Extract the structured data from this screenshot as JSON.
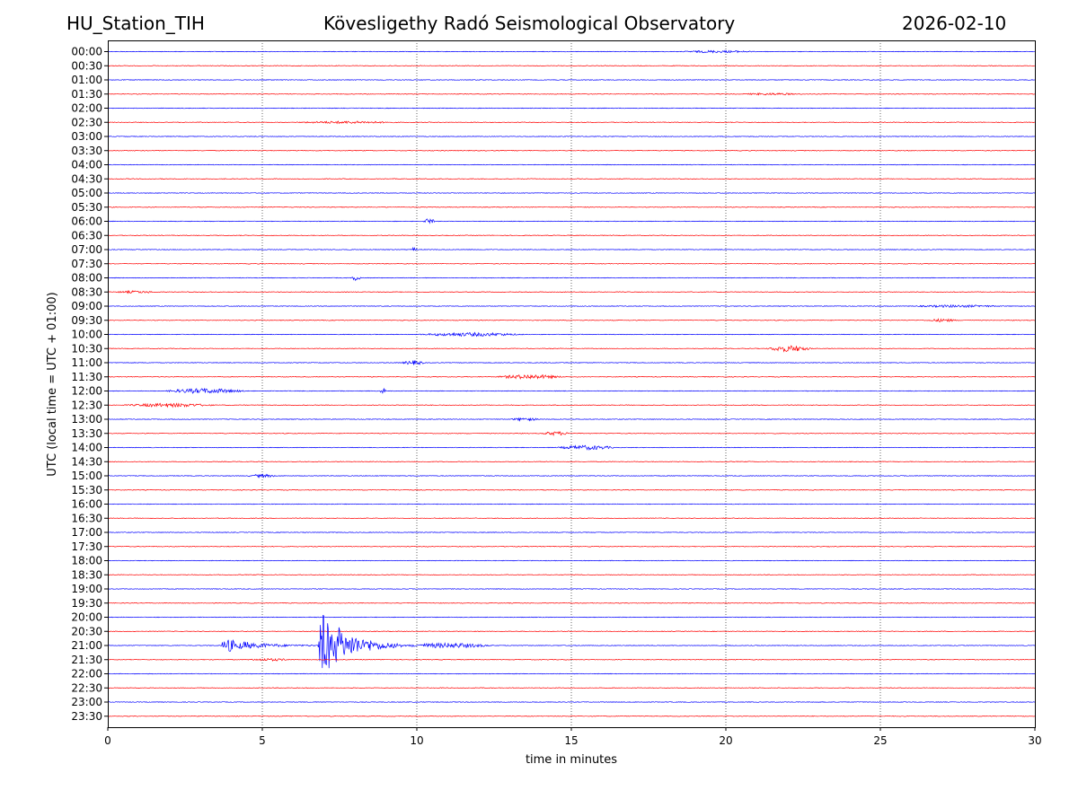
{
  "header": {
    "station": "HU_Station_TIH",
    "observatory": "Kövesligethy Radó Seismological Observatory",
    "date": "2026-02-10"
  },
  "chart_data": {
    "type": "line",
    "title": "Kövesligethy Radó Seismological Observatory",
    "xlabel": "time in minutes",
    "ylabel": "UTC (local time = UTC + 01:00)",
    "xlim": [
      0,
      30
    ],
    "x_ticks": [
      "0",
      "5",
      "10",
      "15",
      "20",
      "25",
      "30"
    ],
    "grid": "vertical dotted lines at 5-minute intervals",
    "row_labels": [
      "00:00",
      "00:30",
      "01:00",
      "01:30",
      "02:00",
      "02:30",
      "03:00",
      "03:30",
      "04:00",
      "04:30",
      "05:00",
      "05:30",
      "06:00",
      "06:30",
      "07:00",
      "07:30",
      "08:00",
      "08:30",
      "09:00",
      "09:30",
      "10:00",
      "10:30",
      "11:00",
      "11:30",
      "12:00",
      "12:30",
      "13:00",
      "13:30",
      "14:00",
      "14:30",
      "15:00",
      "15:30",
      "16:00",
      "16:30",
      "17:00",
      "17:30",
      "18:00",
      "18:30",
      "19:00",
      "19:30",
      "20:00",
      "20:30",
      "21:00",
      "21:30",
      "22:00",
      "22:30",
      "23:00",
      "23:30"
    ],
    "row_colors": [
      "#0000ff",
      "#ff0000"
    ],
    "background_amplitude": 0.05,
    "events": [
      {
        "row": "00:00",
        "start": 18.5,
        "end": 21.0,
        "amp": 0.15
      },
      {
        "row": "01:30",
        "start": 20.5,
        "end": 22.5,
        "amp": 0.12
      },
      {
        "row": "02:30",
        "start": 6.0,
        "end": 9.5,
        "amp": 0.15
      },
      {
        "row": "06:00",
        "start": 10.2,
        "end": 10.6,
        "amp": 0.4
      },
      {
        "row": "07:00",
        "start": 9.8,
        "end": 10.0,
        "amp": 0.3
      },
      {
        "row": "08:00",
        "start": 7.9,
        "end": 8.2,
        "amp": 0.45
      },
      {
        "row": "08:30",
        "start": 0.2,
        "end": 1.6,
        "amp": 0.15
      },
      {
        "row": "09:00",
        "start": 26.0,
        "end": 29.0,
        "amp": 0.15
      },
      {
        "row": "09:30",
        "start": 26.5,
        "end": 27.5,
        "amp": 0.2
      },
      {
        "row": "10:00",
        "start": 10.0,
        "end": 13.5,
        "amp": 0.25
      },
      {
        "row": "10:30",
        "start": 21.3,
        "end": 22.8,
        "amp": 0.45
      },
      {
        "row": "11:00",
        "start": 9.5,
        "end": 10.3,
        "amp": 0.3
      },
      {
        "row": "11:30",
        "start": 12.5,
        "end": 14.8,
        "amp": 0.3
      },
      {
        "row": "12:00",
        "start": 1.8,
        "end": 4.5,
        "amp": 0.35
      },
      {
        "row": "12:00",
        "start": 8.8,
        "end": 9.0,
        "amp": 0.45
      },
      {
        "row": "12:30",
        "start": 0.5,
        "end": 3.5,
        "amp": 0.25
      },
      {
        "row": "13:00",
        "start": 13.0,
        "end": 14.0,
        "amp": 0.2
      },
      {
        "row": "13:30",
        "start": 14.0,
        "end": 15.0,
        "amp": 0.25
      },
      {
        "row": "14:00",
        "start": 14.5,
        "end": 16.5,
        "amp": 0.3
      },
      {
        "row": "15:00",
        "start": 4.5,
        "end": 5.5,
        "amp": 0.2
      },
      {
        "row": "21:00",
        "start": 3.7,
        "end": 6.7,
        "amp": 1.2,
        "decay": true
      },
      {
        "row": "21:00",
        "start": 6.8,
        "end": 9.5,
        "amp": 6.2,
        "decay": true
      },
      {
        "row": "21:00",
        "start": 9.5,
        "end": 12.5,
        "amp": 0.35
      },
      {
        "row": "21:30",
        "start": 4.5,
        "end": 6.0,
        "amp": 0.15
      }
    ]
  }
}
